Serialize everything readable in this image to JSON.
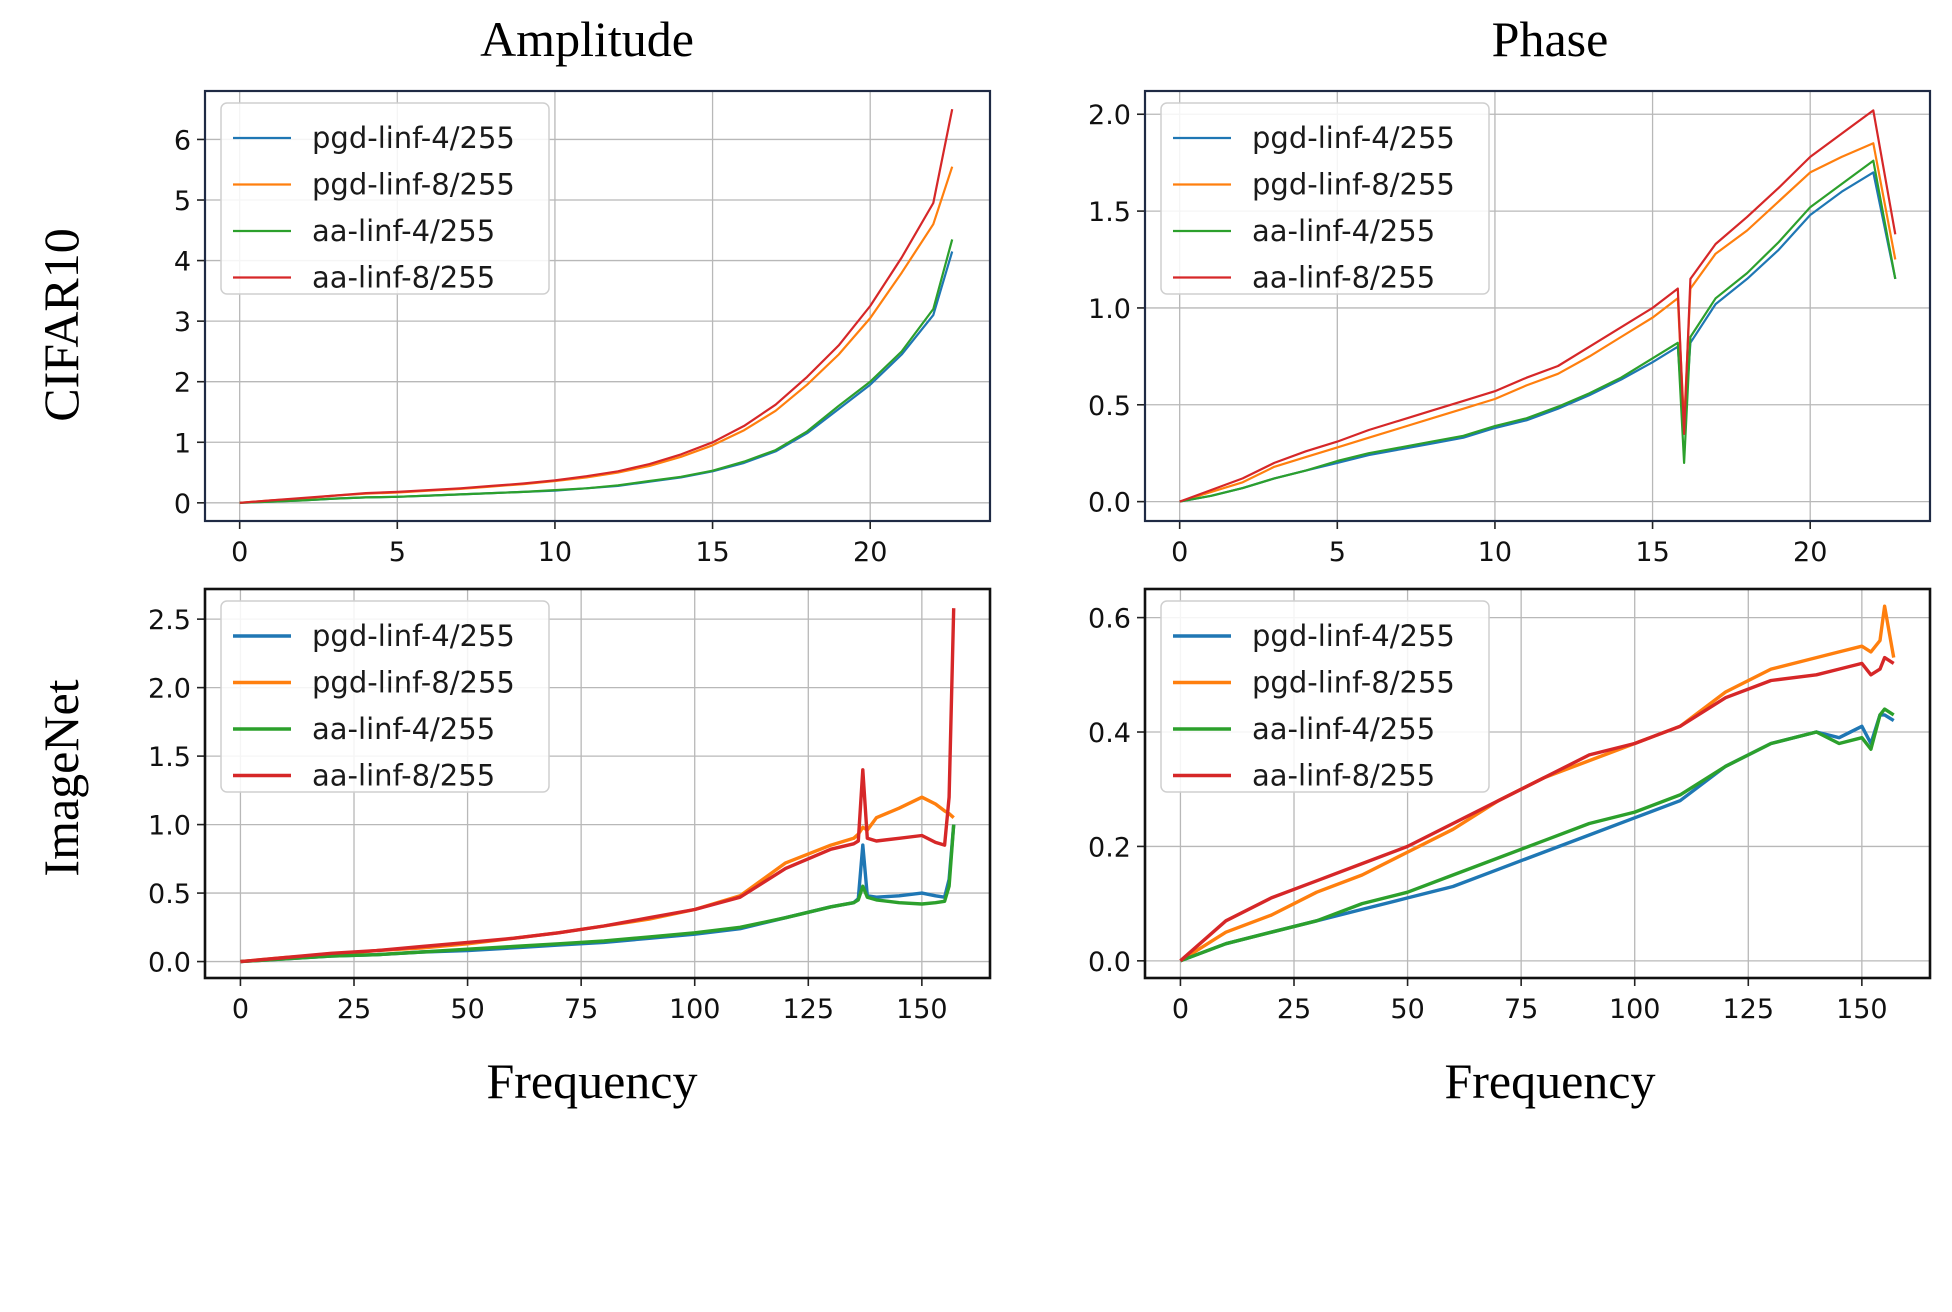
{
  "figure": {
    "col_titles": [
      "Amplitude",
      "Phase"
    ],
    "row_labels": [
      "CIFAR10",
      "ImageNet"
    ],
    "xlabel": "Frequency"
  },
  "colors": {
    "pgd-linf-4/255": "#1f77b4",
    "pgd-linf-8/255": "#ff7f0e",
    "aa-linf-4/255": "#2ca02c",
    "aa-linf-8/255": "#d62728"
  },
  "chart_data": [
    {
      "id": "cifar-amplitude",
      "type": "line",
      "title": "Amplitude",
      "row": "CIFAR10",
      "xlabel": "",
      "ylabel": "",
      "xlim": [
        -1.1,
        23.8
      ],
      "ylim": [
        -0.3,
        6.8
      ],
      "xticks": [
        0,
        5,
        10,
        15,
        20
      ],
      "yticks": [
        0,
        1,
        2,
        3,
        4,
        5,
        6
      ],
      "ytick_format": "int",
      "grid": true,
      "legend": "top-left",
      "legend_entries": [
        "pgd-linf-4/255",
        "pgd-linf-8/255",
        "aa-linf-4/255",
        "aa-linf-8/255"
      ],
      "x": [
        0,
        1,
        2,
        3,
        4,
        5,
        6,
        7,
        8,
        9,
        10,
        11,
        12,
        13,
        14,
        15,
        16,
        17,
        18,
        19,
        20,
        21,
        22,
        22.6
      ],
      "series": [
        {
          "name": "pgd-linf-4/255",
          "values": [
            0,
            0.02,
            0.04,
            0.07,
            0.09,
            0.1,
            0.12,
            0.14,
            0.16,
            0.18,
            0.2,
            0.24,
            0.28,
            0.35,
            0.42,
            0.52,
            0.66,
            0.85,
            1.15,
            1.55,
            1.95,
            2.45,
            3.1,
            4.15
          ]
        },
        {
          "name": "pgd-linf-8/255",
          "values": [
            0,
            0.04,
            0.07,
            0.12,
            0.15,
            0.17,
            0.2,
            0.23,
            0.27,
            0.31,
            0.36,
            0.42,
            0.5,
            0.61,
            0.76,
            0.95,
            1.2,
            1.52,
            1.95,
            2.45,
            3.05,
            3.8,
            4.6,
            5.55
          ]
        },
        {
          "name": "aa-linf-4/255",
          "values": [
            0,
            0.02,
            0.04,
            0.07,
            0.09,
            0.1,
            0.12,
            0.14,
            0.16,
            0.18,
            0.21,
            0.24,
            0.29,
            0.36,
            0.43,
            0.53,
            0.68,
            0.87,
            1.18,
            1.6,
            2.0,
            2.5,
            3.2,
            4.35
          ]
        },
        {
          "name": "aa-linf-8/255",
          "values": [
            0,
            0.04,
            0.08,
            0.12,
            0.16,
            0.18,
            0.21,
            0.24,
            0.28,
            0.32,
            0.37,
            0.44,
            0.52,
            0.64,
            0.8,
            1.0,
            1.27,
            1.62,
            2.08,
            2.6,
            3.25,
            4.05,
            4.95,
            6.5
          ]
        }
      ]
    },
    {
      "id": "cifar-phase",
      "type": "line",
      "title": "Phase",
      "row": "CIFAR10",
      "xlabel": "",
      "ylabel": "",
      "xlim": [
        -1.1,
        23.8
      ],
      "ylim": [
        -0.1,
        2.12
      ],
      "xticks": [
        0,
        5,
        10,
        15,
        20
      ],
      "yticks": [
        0.0,
        0.5,
        1.0,
        1.5,
        2.0
      ],
      "ytick_format": "1dp",
      "grid": true,
      "legend": "top-left",
      "legend_entries": [
        "pgd-linf-4/255",
        "pgd-linf-8/255",
        "aa-linf-4/255",
        "aa-linf-8/255"
      ],
      "x": [
        0,
        1,
        2,
        3,
        4,
        5,
        6,
        7,
        8,
        9,
        10,
        11,
        12,
        13,
        14,
        15,
        15.8,
        16,
        16.2,
        17,
        18,
        19,
        20,
        21,
        22,
        22.7
      ],
      "series": [
        {
          "name": "pgd-linf-4/255",
          "values": [
            0,
            0.03,
            0.07,
            0.12,
            0.16,
            0.2,
            0.24,
            0.27,
            0.3,
            0.33,
            0.38,
            0.42,
            0.48,
            0.55,
            0.63,
            0.72,
            0.8,
            0.35,
            0.82,
            1.02,
            1.15,
            1.3,
            1.48,
            1.6,
            1.7,
            1.15
          ]
        },
        {
          "name": "pgd-linf-8/255",
          "values": [
            0,
            0.05,
            0.1,
            0.18,
            0.23,
            0.28,
            0.33,
            0.38,
            0.43,
            0.48,
            0.53,
            0.6,
            0.66,
            0.75,
            0.85,
            0.95,
            1.05,
            0.4,
            1.1,
            1.28,
            1.4,
            1.55,
            1.7,
            1.78,
            1.85,
            1.25
          ]
        },
        {
          "name": "aa-linf-4/255",
          "values": [
            0,
            0.03,
            0.07,
            0.12,
            0.16,
            0.21,
            0.25,
            0.28,
            0.31,
            0.34,
            0.39,
            0.43,
            0.49,
            0.56,
            0.64,
            0.74,
            0.82,
            0.2,
            0.85,
            1.05,
            1.18,
            1.34,
            1.52,
            1.64,
            1.76,
            1.15
          ]
        },
        {
          "name": "aa-linf-8/255",
          "values": [
            0,
            0.06,
            0.12,
            0.2,
            0.26,
            0.31,
            0.37,
            0.42,
            0.47,
            0.52,
            0.57,
            0.64,
            0.7,
            0.8,
            0.9,
            1.0,
            1.1,
            0.35,
            1.15,
            1.33,
            1.47,
            1.62,
            1.78,
            1.9,
            2.02,
            1.38
          ]
        }
      ]
    },
    {
      "id": "imagenet-amplitude",
      "type": "line",
      "title": "",
      "row": "ImageNet",
      "xlabel": "Frequency",
      "ylabel": "",
      "xlim": [
        -7.8,
        165
      ],
      "ylim": [
        -0.12,
        2.72
      ],
      "xticks": [
        0,
        25,
        50,
        75,
        100,
        125,
        150
      ],
      "yticks": [
        0.0,
        0.5,
        1.0,
        1.5,
        2.0,
        2.5
      ],
      "ytick_format": "1dp",
      "grid": true,
      "legend": "top-left",
      "legend_entries": [
        "pgd-linf-4/255",
        "pgd-linf-8/255",
        "aa-linf-4/255",
        "aa-linf-8/255"
      ],
      "x": [
        0,
        10,
        20,
        30,
        40,
        50,
        60,
        70,
        80,
        90,
        100,
        110,
        120,
        130,
        135,
        136,
        137,
        138,
        140,
        145,
        150,
        153,
        155,
        156,
        157
      ],
      "series": [
        {
          "name": "pgd-linf-4/255",
          "values": [
            0,
            0.02,
            0.04,
            0.05,
            0.07,
            0.08,
            0.1,
            0.12,
            0.14,
            0.17,
            0.2,
            0.24,
            0.32,
            0.4,
            0.43,
            0.46,
            0.85,
            0.48,
            0.47,
            0.48,
            0.5,
            0.48,
            0.47,
            0.6,
            1.0
          ]
        },
        {
          "name": "pgd-linf-8/255",
          "values": [
            0,
            0.03,
            0.05,
            0.08,
            0.1,
            0.13,
            0.17,
            0.21,
            0.26,
            0.31,
            0.38,
            0.48,
            0.72,
            0.85,
            0.9,
            0.93,
            0.98,
            0.96,
            1.05,
            1.12,
            1.2,
            1.15,
            1.1,
            1.08,
            1.05
          ]
        },
        {
          "name": "aa-linf-4/255",
          "values": [
            0,
            0.02,
            0.04,
            0.05,
            0.07,
            0.09,
            0.11,
            0.13,
            0.15,
            0.18,
            0.21,
            0.25,
            0.32,
            0.4,
            0.43,
            0.45,
            0.55,
            0.47,
            0.45,
            0.43,
            0.42,
            0.43,
            0.44,
            0.55,
            1.0
          ]
        },
        {
          "name": "aa-linf-8/255",
          "values": [
            0,
            0.03,
            0.06,
            0.08,
            0.11,
            0.14,
            0.17,
            0.21,
            0.26,
            0.32,
            0.38,
            0.47,
            0.68,
            0.82,
            0.86,
            0.88,
            1.4,
            0.9,
            0.88,
            0.9,
            0.92,
            0.87,
            0.85,
            1.2,
            2.58
          ]
        }
      ]
    },
    {
      "id": "imagenet-phase",
      "type": "line",
      "title": "",
      "row": "ImageNet",
      "xlabel": "Frequency",
      "ylabel": "",
      "xlim": [
        -7.8,
        165
      ],
      "ylim": [
        -0.03,
        0.65
      ],
      "xticks": [
        0,
        25,
        50,
        75,
        100,
        125,
        150
      ],
      "yticks": [
        0.0,
        0.2,
        0.4,
        0.6
      ],
      "ytick_format": "1dp",
      "grid": true,
      "legend": "top-left",
      "legend_entries": [
        "pgd-linf-4/255",
        "pgd-linf-8/255",
        "aa-linf-4/255",
        "aa-linf-8/255"
      ],
      "x": [
        0,
        10,
        20,
        30,
        40,
        50,
        60,
        70,
        80,
        90,
        100,
        110,
        120,
        130,
        140,
        145,
        150,
        152,
        154,
        155,
        157
      ],
      "series": [
        {
          "name": "pgd-linf-4/255",
          "values": [
            0,
            0.03,
            0.05,
            0.07,
            0.09,
            0.11,
            0.13,
            0.16,
            0.19,
            0.22,
            0.25,
            0.28,
            0.34,
            0.38,
            0.4,
            0.39,
            0.41,
            0.38,
            0.43,
            0.43,
            0.42
          ]
        },
        {
          "name": "pgd-linf-8/255",
          "values": [
            0,
            0.05,
            0.08,
            0.12,
            0.15,
            0.19,
            0.23,
            0.28,
            0.32,
            0.35,
            0.38,
            0.41,
            0.47,
            0.51,
            0.53,
            0.54,
            0.55,
            0.54,
            0.56,
            0.62,
            0.53
          ]
        },
        {
          "name": "aa-linf-4/255",
          "values": [
            0,
            0.03,
            0.05,
            0.07,
            0.1,
            0.12,
            0.15,
            0.18,
            0.21,
            0.24,
            0.26,
            0.29,
            0.34,
            0.38,
            0.4,
            0.38,
            0.39,
            0.37,
            0.43,
            0.44,
            0.43
          ]
        },
        {
          "name": "aa-linf-8/255",
          "values": [
            0,
            0.07,
            0.11,
            0.14,
            0.17,
            0.2,
            0.24,
            0.28,
            0.32,
            0.36,
            0.38,
            0.41,
            0.46,
            0.49,
            0.5,
            0.51,
            0.52,
            0.5,
            0.51,
            0.53,
            0.52
          ]
        }
      ]
    }
  ]
}
